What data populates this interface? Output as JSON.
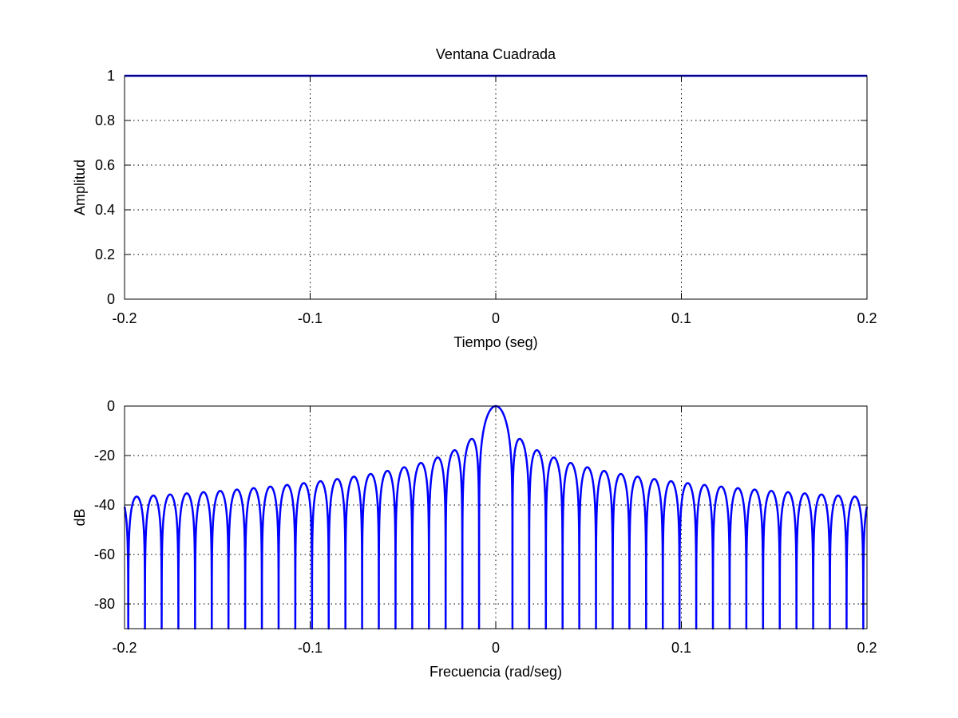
{
  "chart_data": [
    {
      "type": "line",
      "title": "Ventana Cuadrada",
      "xlabel": "Tiempo (seg)",
      "ylabel": "Amplitud",
      "xlim": [
        -0.2,
        0.2
      ],
      "ylim": [
        0,
        1
      ],
      "xticks": [
        "-0.2",
        "-0.1",
        "0",
        "0.1",
        "0.2"
      ],
      "yticks": [
        "0",
        "0.2",
        "0.4",
        "0.6",
        "0.8",
        "1"
      ],
      "grid": true,
      "series": [
        {
          "x": [
            -0.2,
            0.2
          ],
          "y": [
            1,
            1
          ],
          "color": "#0000ff"
        }
      ]
    },
    {
      "type": "line",
      "title": "",
      "xlabel": "Frecuencia (rad/seg)",
      "ylabel": "dB",
      "xlim": [
        -0.2,
        0.2
      ],
      "ylim": [
        -90,
        0
      ],
      "xticks": [
        "-0.2",
        "-0.1",
        "0",
        "0.1",
        "0.2"
      ],
      "yticks": [
        "-80",
        "-60",
        "-40",
        "-20",
        "0"
      ],
      "grid": true,
      "series": [
        {
          "function": "20*log10(|sin(pi*x/0.009)/(pi*x/0.009)|)",
          "main_lobe_peak_db": 0,
          "first_sidelobe_db": -13.3,
          "null_spacing": 0.009,
          "edge_value_db": -47,
          "color": "#0000ff"
        }
      ]
    }
  ]
}
